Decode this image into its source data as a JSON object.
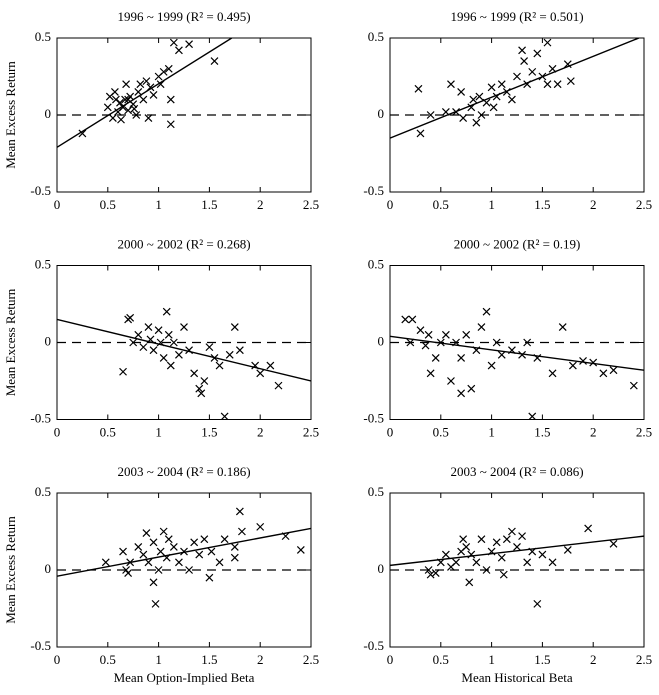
{
  "chart_data": [
    {
      "type": "scatter",
      "title": "1996 ~ 1999 (R² = 0.495)",
      "ylabel": "Mean Excess Return",
      "xlim": [
        0,
        2.5
      ],
      "ylim": [
        -0.5,
        0.5
      ],
      "xticks": [
        0,
        0.5,
        1,
        1.5,
        2,
        2.5
      ],
      "yticks": [
        -0.5,
        0,
        0.5
      ],
      "reference_line": 0,
      "fit": {
        "x": [
          0,
          1.72
        ],
        "y": [
          -0.21,
          0.5
        ]
      },
      "series": [
        {
          "color": "#000000",
          "x": [
            0.25,
            0.5,
            0.52,
            0.55,
            0.57,
            0.6,
            0.62,
            0.63,
            0.65,
            0.67,
            0.68,
            0.7,
            0.72,
            0.75,
            0.78,
            0.8,
            0.82,
            0.85,
            0.88,
            0.9,
            0.92,
            0.95,
            1.0,
            1.02,
            1.05,
            1.1,
            1.12,
            1.12,
            1.15,
            1.2,
            1.3,
            1.55,
            0.58,
            0.7,
            0.76
          ],
          "y": [
            -0.12,
            0.05,
            0.12,
            -0.02,
            0.15,
            0.02,
            0.08,
            -0.03,
            0.05,
            0.1,
            0.2,
            0.03,
            0.12,
            0.07,
            0.0,
            0.15,
            0.2,
            0.1,
            0.22,
            -0.02,
            0.18,
            0.13,
            0.25,
            0.2,
            0.28,
            0.3,
            0.1,
            -0.06,
            0.47,
            0.42,
            0.46,
            0.35,
            0.1,
            0.1,
            0.04
          ]
        }
      ]
    },
    {
      "type": "scatter",
      "title": "1996 ~ 1999 (R² = 0.501)",
      "xlim": [
        0,
        2.5
      ],
      "ylim": [
        -0.5,
        0.5
      ],
      "xticks": [
        0,
        0.5,
        1,
        1.5,
        2,
        2.5
      ],
      "yticks": [
        -0.5,
        0,
        0.5
      ],
      "reference_line": 0,
      "fit": {
        "x": [
          0,
          2.45
        ],
        "y": [
          -0.15,
          0.5
        ]
      },
      "series": [
        {
          "color": "#000000",
          "x": [
            0.28,
            0.3,
            0.4,
            0.6,
            0.65,
            0.7,
            0.72,
            0.8,
            0.82,
            0.85,
            0.88,
            0.9,
            0.95,
            1.0,
            1.02,
            1.05,
            1.1,
            1.15,
            1.2,
            1.25,
            1.3,
            1.32,
            1.35,
            1.4,
            1.5,
            1.55,
            1.55,
            1.6,
            1.65,
            1.75,
            1.78,
            0.55,
            1.45
          ],
          "y": [
            0.17,
            -0.12,
            0.0,
            0.2,
            0.02,
            0.15,
            -0.02,
            0.05,
            0.1,
            -0.05,
            0.12,
            0.0,
            0.08,
            0.18,
            0.05,
            0.12,
            0.2,
            0.15,
            0.1,
            0.25,
            0.42,
            0.35,
            0.2,
            0.28,
            0.25,
            0.47,
            0.2,
            0.3,
            0.2,
            0.33,
            0.22,
            0.02,
            0.4
          ]
        }
      ]
    },
    {
      "type": "scatter",
      "title": "2000 ~ 2002 (R² = 0.268)",
      "ylabel": "Mean Excess Return",
      "xlim": [
        0,
        2.5
      ],
      "ylim": [
        -0.5,
        0.5
      ],
      "xticks": [
        0,
        0.5,
        1,
        1.5,
        2,
        2.5
      ],
      "yticks": [
        -0.5,
        0,
        0.5
      ],
      "reference_line": 0,
      "fit": {
        "x": [
          0,
          2.5
        ],
        "y": [
          0.15,
          -0.25
        ]
      },
      "series": [
        {
          "color": "#000000",
          "x": [
            0.65,
            0.7,
            0.72,
            0.75,
            0.8,
            0.85,
            0.9,
            0.92,
            0.95,
            1.0,
            1.02,
            1.05,
            1.08,
            1.1,
            1.12,
            1.15,
            1.2,
            1.25,
            1.3,
            1.35,
            1.4,
            1.45,
            1.5,
            1.55,
            1.6,
            1.65,
            1.7,
            1.75,
            1.8,
            1.95,
            2.0,
            2.1,
            2.18,
            1.42
          ],
          "y": [
            -0.19,
            0.15,
            0.16,
            0.0,
            0.05,
            -0.03,
            0.1,
            0.02,
            -0.05,
            0.08,
            0.0,
            -0.1,
            0.2,
            0.05,
            -0.15,
            0.0,
            -0.08,
            0.1,
            -0.05,
            -0.2,
            -0.3,
            -0.25,
            -0.03,
            -0.1,
            -0.15,
            -0.48,
            -0.08,
            0.1,
            -0.05,
            -0.15,
            -0.2,
            -0.15,
            -0.28,
            -0.33
          ]
        }
      ]
    },
    {
      "type": "scatter",
      "title": "2000 ~ 2002 (R² = 0.19)",
      "xlim": [
        0,
        2.5
      ],
      "ylim": [
        -0.5,
        0.5
      ],
      "xticks": [
        0,
        0.5,
        1,
        1.5,
        2,
        2.5
      ],
      "yticks": [
        -0.5,
        0,
        0.5
      ],
      "reference_line": 0,
      "fit": {
        "x": [
          0,
          2.5
        ],
        "y": [
          0.04,
          -0.18
        ]
      },
      "series": [
        {
          "color": "#000000",
          "x": [
            0.15,
            0.2,
            0.22,
            0.3,
            0.35,
            0.38,
            0.4,
            0.45,
            0.5,
            0.55,
            0.6,
            0.65,
            0.7,
            0.75,
            0.8,
            0.85,
            0.9,
            0.95,
            1.0,
            1.05,
            1.1,
            1.2,
            1.3,
            1.35,
            1.4,
            1.45,
            1.6,
            1.7,
            1.8,
            1.9,
            2.0,
            2.1,
            2.2,
            2.4,
            0.7
          ],
          "y": [
            0.15,
            0.0,
            0.15,
            0.08,
            -0.02,
            0.05,
            -0.2,
            -0.1,
            0.0,
            0.05,
            -0.25,
            0.0,
            -0.1,
            0.05,
            -0.3,
            -0.05,
            0.1,
            0.2,
            -0.15,
            0.0,
            -0.08,
            -0.05,
            -0.08,
            0.0,
            -0.48,
            -0.1,
            -0.2,
            0.1,
            -0.15,
            -0.12,
            -0.13,
            -0.2,
            -0.18,
            -0.28,
            -0.33
          ]
        }
      ]
    },
    {
      "type": "scatter",
      "title": "2003 ~ 2004 (R² = 0.186)",
      "ylabel": "Mean Excess Return",
      "xlabel": "Mean Option-Implied Beta",
      "xlim": [
        0,
        2.5
      ],
      "ylim": [
        -0.5,
        0.5
      ],
      "xticks": [
        0,
        0.5,
        1,
        1.5,
        2,
        2.5
      ],
      "yticks": [
        -0.5,
        0,
        0.5
      ],
      "reference_line": 0,
      "fit": {
        "x": [
          0,
          2.5
        ],
        "y": [
          -0.04,
          0.27
        ]
      },
      "series": [
        {
          "color": "#000000",
          "x": [
            0.48,
            0.65,
            0.68,
            0.7,
            0.72,
            0.8,
            0.85,
            0.88,
            0.9,
            0.95,
            0.97,
            1.0,
            1.02,
            1.05,
            1.08,
            1.1,
            1.15,
            1.2,
            1.25,
            1.3,
            1.35,
            1.4,
            1.45,
            1.5,
            1.52,
            1.6,
            1.65,
            1.75,
            1.8,
            1.82,
            2.0,
            2.25,
            2.4,
            1.75,
            0.95
          ],
          "y": [
            0.05,
            0.12,
            0.0,
            -0.02,
            0.05,
            0.15,
            0.1,
            0.24,
            0.05,
            0.18,
            -0.22,
            0.0,
            0.12,
            0.25,
            0.08,
            0.2,
            0.15,
            0.05,
            0.12,
            0.0,
            0.18,
            0.1,
            0.2,
            -0.05,
            0.12,
            0.05,
            0.2,
            0.15,
            0.38,
            0.25,
            0.28,
            0.22,
            0.13,
            0.08,
            -0.08
          ]
        }
      ]
    },
    {
      "type": "scatter",
      "title": "2003 ~ 2004 (R² = 0.086)",
      "xlabel": "Mean Historical Beta",
      "xlim": [
        0,
        2.5
      ],
      "ylim": [
        -0.5,
        0.5
      ],
      "xticks": [
        0,
        0.5,
        1,
        1.5,
        2,
        2.5
      ],
      "yticks": [
        -0.5,
        0,
        0.5
      ],
      "reference_line": 0,
      "fit": {
        "x": [
          0,
          2.5
        ],
        "y": [
          0.03,
          0.22
        ]
      },
      "series": [
        {
          "color": "#000000",
          "x": [
            0.38,
            0.4,
            0.5,
            0.55,
            0.6,
            0.65,
            0.7,
            0.72,
            0.75,
            0.78,
            0.8,
            0.85,
            0.9,
            0.95,
            1.0,
            1.05,
            1.1,
            1.15,
            1.2,
            1.25,
            1.3,
            1.35,
            1.4,
            1.45,
            1.5,
            1.6,
            1.75,
            1.95,
            2.2,
            0.45,
            1.12
          ],
          "y": [
            0.0,
            -0.03,
            0.05,
            0.1,
            0.02,
            0.05,
            0.12,
            0.2,
            0.15,
            -0.08,
            0.1,
            0.05,
            0.2,
            0.0,
            0.12,
            0.18,
            0.08,
            0.2,
            0.25,
            0.15,
            0.22,
            0.05,
            0.12,
            -0.22,
            0.1,
            0.05,
            0.13,
            0.27,
            0.17,
            -0.02,
            -0.03
          ]
        }
      ]
    }
  ]
}
